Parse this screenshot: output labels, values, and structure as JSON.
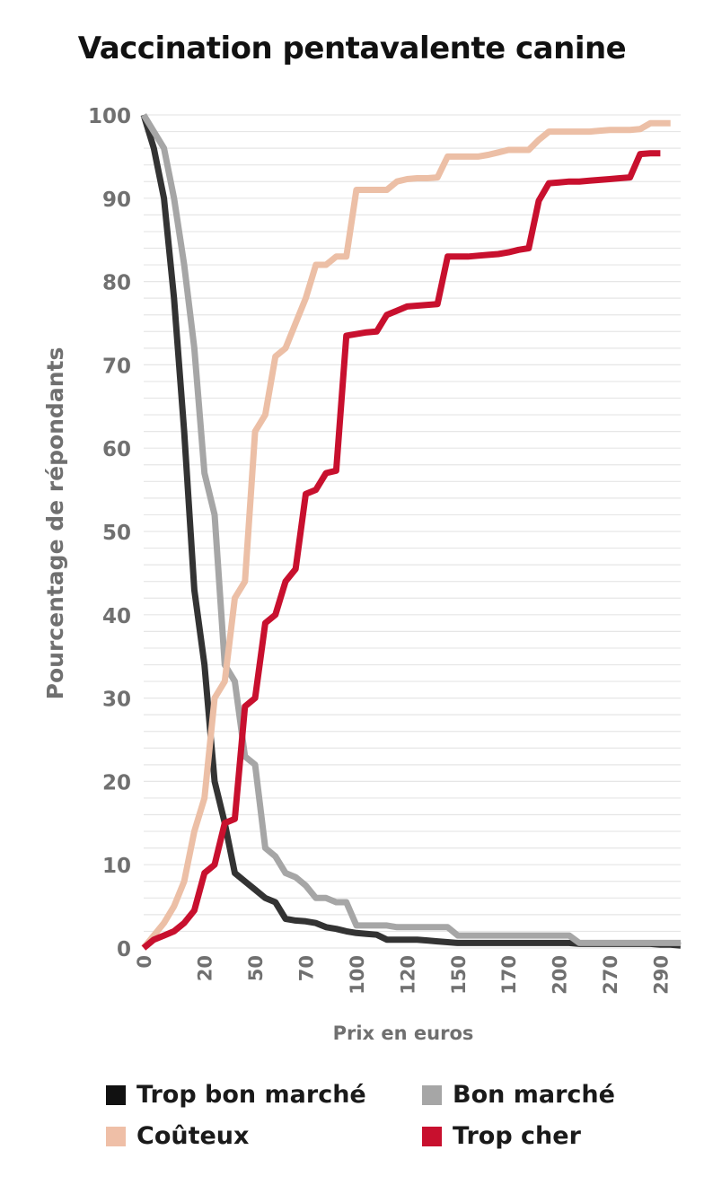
{
  "chart_data": {
    "type": "line",
    "title": "Vaccination pentavalente canine",
    "xlabel": "Prix en euros",
    "ylabel": "Pourcentage de répondants",
    "ylim": [
      0,
      100
    ],
    "yticks": [
      "0",
      "10",
      "20",
      "30",
      "40",
      "50",
      "60",
      "70",
      "80",
      "90",
      "100"
    ],
    "xticks": [
      {
        "label": "0",
        "index": 0
      },
      {
        "label": "20",
        "index": 6
      },
      {
        "label": "50",
        "index": 11
      },
      {
        "label": "70",
        "index": 16
      },
      {
        "label": "100",
        "index": 21
      },
      {
        "label": "120",
        "index": 26
      },
      {
        "label": "150",
        "index": 31
      },
      {
        "label": "170",
        "index": 36
      },
      {
        "label": "200",
        "index": 41
      },
      {
        "label": "270",
        "index": 46
      },
      {
        "label": "290",
        "index": 51
      }
    ],
    "grid": true,
    "legend_position": "bottom",
    "series": [
      {
        "name": "Trop bon marché",
        "color": "#333333",
        "values": [
          100,
          96,
          90,
          78,
          62,
          43,
          34,
          20,
          15,
          9,
          8,
          7,
          6,
          5.5,
          3.5,
          3.3,
          3.2,
          3,
          2.5,
          2.3,
          2,
          1.8,
          1.7,
          1.6,
          1,
          1,
          1,
          1,
          0.9,
          0.8,
          0.7,
          0.6,
          0.6,
          0.6,
          0.6,
          0.6,
          0.6,
          0.6,
          0.6,
          0.6,
          0.6,
          0.6,
          0.6,
          0.5,
          0.5,
          0.5,
          0.5,
          0.5,
          0.5,
          0.5,
          0.5,
          0.4,
          0.4,
          0.3
        ]
      },
      {
        "name": "Bon marché",
        "color": "#a6a6a6",
        "values": [
          100,
          98,
          96,
          90,
          82,
          72,
          57,
          52,
          34,
          32,
          23,
          22,
          12,
          11,
          9,
          8.5,
          7.5,
          6,
          6,
          5.5,
          5.5,
          2.7,
          2.7,
          2.7,
          2.7,
          2.5,
          2.5,
          2.5,
          2.5,
          2.5,
          2.5,
          1.5,
          1.5,
          1.5,
          1.5,
          1.5,
          1.5,
          1.5,
          1.5,
          1.5,
          1.5,
          1.5,
          1.5,
          0.6,
          0.6,
          0.6,
          0.6,
          0.6,
          0.6,
          0.6,
          0.6,
          0.6,
          0.6,
          0.6
        ]
      },
      {
        "name": "Coûteux",
        "color": "#ecbfa6",
        "values": [
          0,
          1.5,
          3,
          5,
          8,
          14,
          18,
          30,
          32,
          42,
          44,
          62,
          64,
          71,
          72,
          75,
          78,
          82,
          82,
          83,
          83,
          91,
          91,
          91,
          91,
          92,
          92.3,
          92.4,
          92.4,
          92.5,
          95,
          95,
          95,
          95,
          95.2,
          95.5,
          95.8,
          95.8,
          95.8,
          97,
          98,
          98,
          98,
          98,
          98,
          98.1,
          98.2,
          98.2,
          98.2,
          98.3,
          99,
          99,
          99
        ]
      },
      {
        "name": "Trop cher",
        "color": "#c8102e",
        "values": [
          0,
          1,
          1.5,
          2,
          3,
          4.5,
          9,
          10,
          15,
          15.5,
          29,
          30,
          39,
          40,
          44,
          45.5,
          54.5,
          55,
          57,
          57.3,
          73.5,
          73.7,
          73.9,
          74,
          76,
          76.5,
          77,
          77.1,
          77.2,
          77.3,
          83,
          83,
          83,
          83.1,
          83.2,
          83.3,
          83.5,
          83.8,
          84,
          89.7,
          91.8,
          91.9,
          92,
          92,
          92.1,
          92.2,
          92.3,
          92.4,
          92.5,
          95.3,
          95.4,
          95.4
        ]
      }
    ]
  },
  "legend": {
    "items": [
      {
        "label": "Trop bon marché",
        "color": "#111111"
      },
      {
        "label": "Bon marché",
        "color": "#a6a6a6"
      },
      {
        "label": "Coûteux",
        "color": "#efbfa7"
      },
      {
        "label": "Trop cher",
        "color": "#c8102e"
      }
    ]
  }
}
